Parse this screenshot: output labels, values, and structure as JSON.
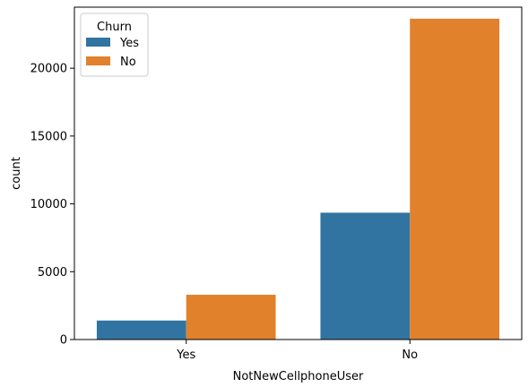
{
  "chart_data": {
    "type": "bar",
    "xlabel": "NotNewCellphoneUser",
    "ylabel": "count",
    "categories": [
      "Yes",
      "No"
    ],
    "series": [
      {
        "name": "Yes",
        "color": "#3274a1",
        "values": [
          1400,
          9350
        ]
      },
      {
        "name": "No",
        "color": "#e1812c",
        "values": [
          3300,
          23650
        ]
      }
    ],
    "ylim": [
      0,
      24500
    ],
    "yticks": [
      0,
      5000,
      10000,
      15000,
      20000
    ],
    "ytick_labels": [
      "0",
      "5000",
      "10000",
      "15000",
      "20000"
    ],
    "grid": false,
    "legend": {
      "title": "Churn",
      "position": "top-left"
    }
  }
}
